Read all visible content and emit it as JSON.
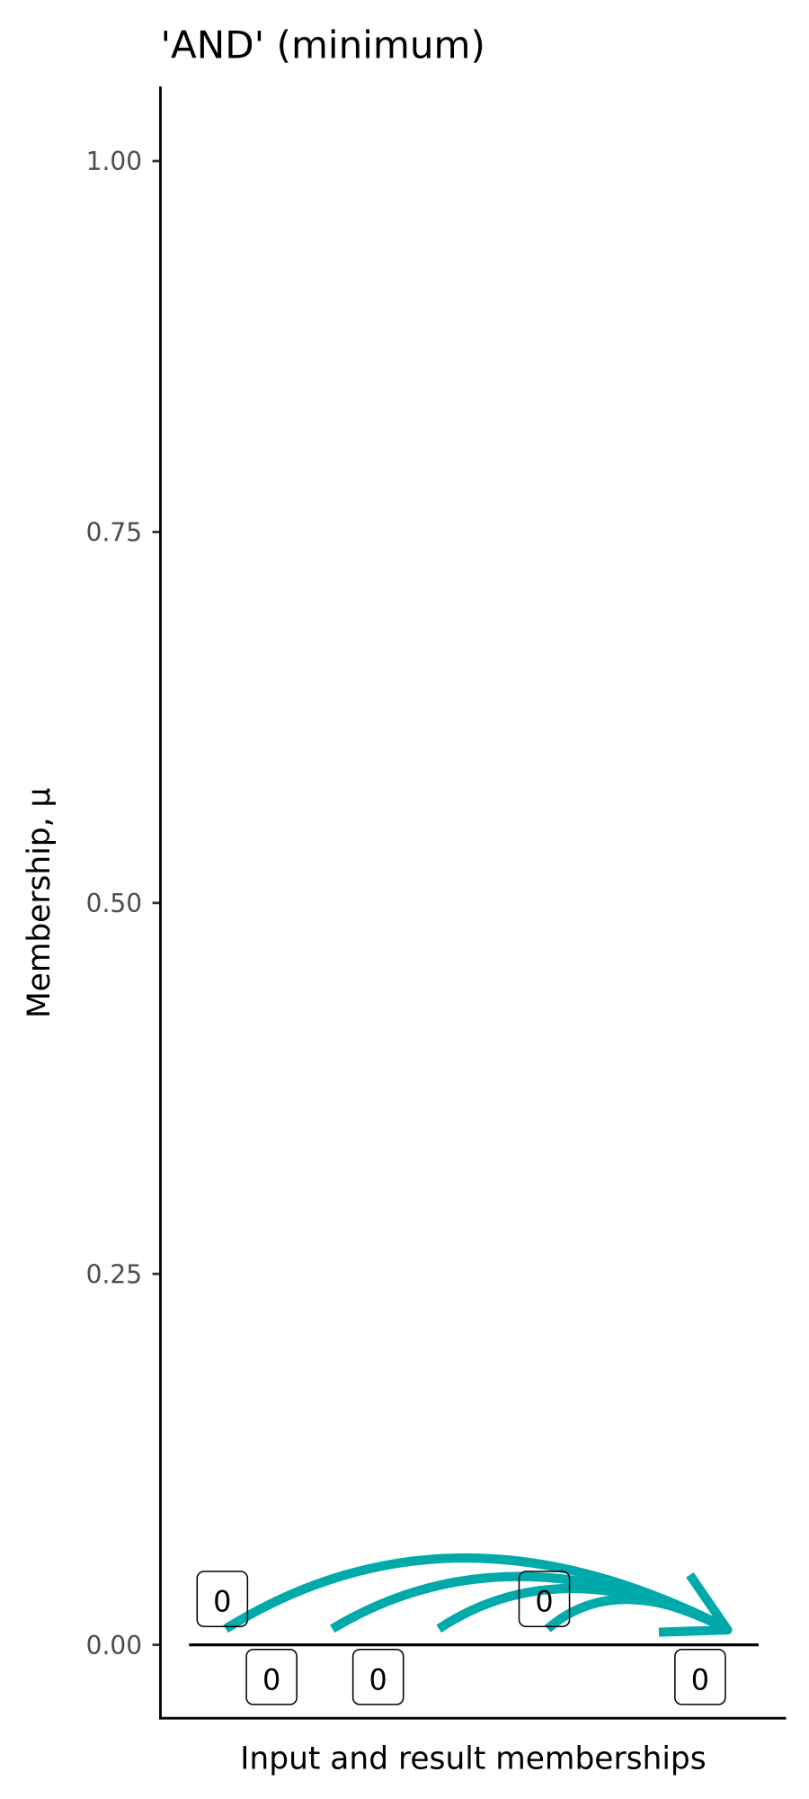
{
  "chart_data": {
    "type": "line",
    "title": "'AND' (minimum)",
    "xlabel": "Input and result memberships",
    "ylabel": "Membership, μ",
    "ylim": [
      -0.05,
      1.05
    ],
    "y_ticks": [
      0,
      0.25,
      0.5,
      0.75,
      1.0
    ],
    "y_tick_labels": [
      "0.00",
      "0.25",
      "0.50",
      "0.75",
      "1.00"
    ],
    "grid": false,
    "inputs": [
      {
        "value": 0,
        "label": "0"
      },
      {
        "value": 0,
        "label": "0"
      },
      {
        "value": 0,
        "label": "0"
      },
      {
        "value": 0,
        "label": "0"
      }
    ],
    "result": {
      "value": 0,
      "label": "0"
    },
    "extra_labels": [
      "0"
    ],
    "arrow_color": "#00AAAA"
  }
}
